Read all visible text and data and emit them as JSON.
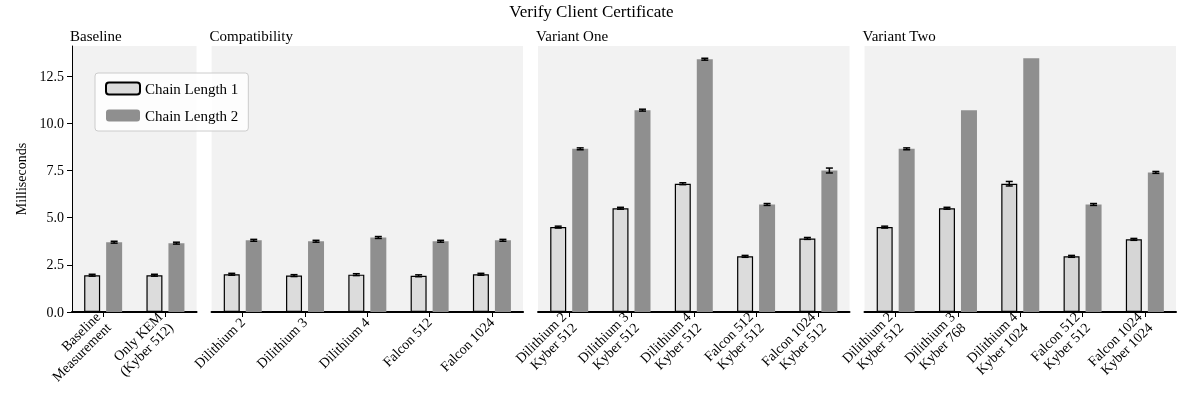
{
  "chart_data": [
    {
      "type": "bar",
      "title": "Baseline",
      "annotations": [
        "Verify Client Certificate"
      ],
      "ylabel": "Milliseconds",
      "legend": "top right",
      "categories": [
        "Baseline\nMeasurement",
        "Only KEM\n(Kyber 512)"
      ],
      "series": [
        {
          "name": "Chain Length 1",
          "color": "#dcdcdc",
          "values": [
            1.95,
            1.95
          ],
          "errors": [
            0.05,
            0.05
          ]
        },
        {
          "name": "Chain Length 2",
          "color": "#8f8f8f",
          "values": [
            3.7,
            3.65
          ],
          "errors": [
            0.05,
            0.05
          ]
        }
      ],
      "ylim": [
        0,
        14.1
      ],
      "yticks": [
        {
          "value": 0,
          "label": "0.0"
        },
        2.5,
        {
          "value": 5,
          "label": "5.0"
        },
        7.5,
        {
          "value": 10,
          "label": "10.0"
        },
        12.5
      ]
    },
    {
      "type": "bar",
      "title": "Compatibility",
      "tick_labels": "x",
      "categories": [
        "Dilithium 2",
        "Dilithium 3",
        "Dilithium 4",
        "Falcon 512",
        "Falcon 1024"
      ],
      "series": [
        {
          "color": "#dcdcdc",
          "values": [
            2.0,
            1.93,
            1.98,
            1.92,
            2.0
          ],
          "errors": [
            0.05,
            0.05,
            0.05,
            0.05,
            0.05
          ]
        },
        {
          "color": "#8f8f8f",
          "values": [
            3.8,
            3.75,
            3.95,
            3.75,
            3.8
          ],
          "errors": [
            0.05,
            0.05,
            0.05,
            0.05,
            0.05
          ]
        }
      ],
      "ylim": [
        0,
        14.1
      ]
    },
    {
      "type": "bar",
      "title": "Variant One",
      "tick_labels": "x",
      "categories": [
        "Dilithium 2\nKyber 512",
        "Dilithium 3\nKyber 512",
        "Dilithium 4\nKyber 512",
        "Falcon 512\nKyber 512",
        "Falcon 1024\nKyber 512"
      ],
      "series": [
        {
          "color": "#dcdcdc",
          "values": [
            4.5,
            5.5,
            6.8,
            2.95,
            3.9
          ],
          "errors": [
            0.05,
            0.05,
            0.05,
            0.05,
            0.05
          ]
        },
        {
          "color": "#8f8f8f",
          "values": [
            8.65,
            10.7,
            13.4,
            5.7,
            7.5
          ],
          "errors": [
            0.05,
            0.05,
            0.05,
            0.05,
            0.13
          ]
        }
      ],
      "ylim": [
        0,
        14.1
      ]
    },
    {
      "type": "bar",
      "title": "Variant Two",
      "tick_labels": "x",
      "categories": [
        "Dilithium 2\nKyber 512",
        "Dilithium 3\nKyber 768",
        "Dilithium 4\nKyber 1024",
        "Falcon 512\nKyber 512",
        "Falcon 1024\nKyber 1024"
      ],
      "series": [
        {
          "color": "#d6d6d6",
          "values": [
            4.5,
            5.5,
            6.8,
            2.95,
            3.85
          ],
          "errors": [
            0.05,
            0.05,
            0.12,
            0.05,
            0.05
          ]
        },
        {
          "color": "#8f8f8f",
          "values": [
            8.65,
            10.7,
            13.45,
            5.7,
            7.4
          ],
          "errors": [
            0.05,
            null,
            null,
            0.05,
            0.05
          ]
        }
      ],
      "ylim": [
        0,
        14.1
      ]
    }
  ]
}
